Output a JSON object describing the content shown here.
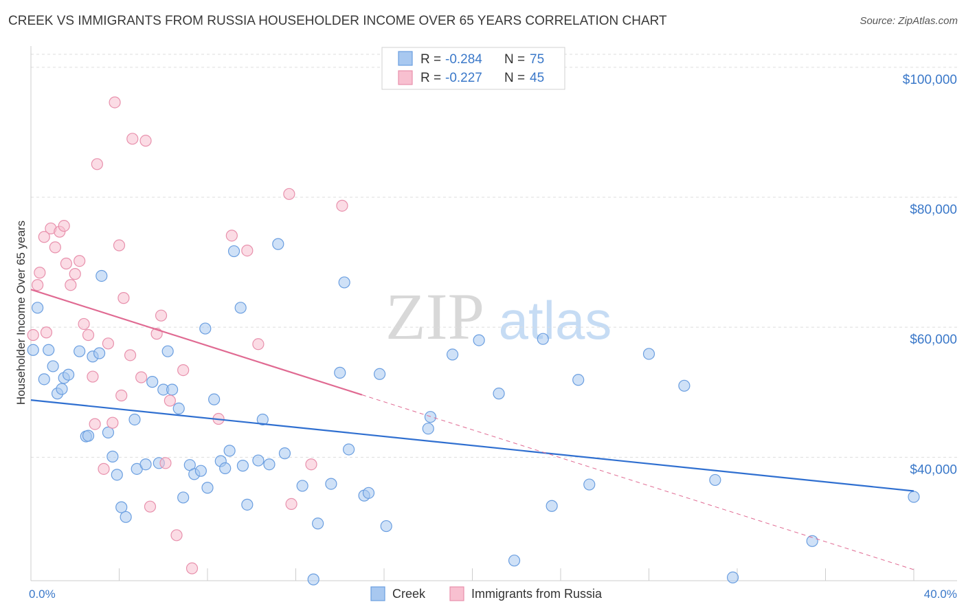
{
  "title": "CREEK VS IMMIGRANTS FROM RUSSIA HOUSEHOLDER INCOME OVER 65 YEARS CORRELATION CHART",
  "source": "Source: ZipAtlas.com",
  "watermark": {
    "zip": "ZIP",
    "atlas": "atlas"
  },
  "legend": {
    "r_label": "R =",
    "n_label": "N =",
    "rows": [
      {
        "r": "-0.284",
        "n": "75",
        "color": "#a8c8f0",
        "stroke": "#6a9ee0"
      },
      {
        "r": "-0.227",
        "n": "45",
        "color": "#f8c0d0",
        "stroke": "#e890ac"
      }
    ]
  },
  "bottom_legend": [
    "Creek",
    "Immigrants from Russia"
  ],
  "chart_data": {
    "type": "scatter",
    "title": "CREEK VS IMMIGRANTS FROM RUSSIA HOUSEHOLDER INCOME OVER 65 YEARS CORRELATION CHART",
    "xlabel": "",
    "ylabel": "Householder Income Over 65 years",
    "xlim": [
      0,
      40
    ],
    "ylim": [
      21000,
      102000
    ],
    "x_tick_labels": [
      "0.0%",
      "40.0%"
    ],
    "y_ticks": [
      40000,
      60000,
      80000,
      100000
    ],
    "y_tick_labels": [
      "$40,000",
      "$60,000",
      "$80,000",
      "$100,000"
    ],
    "series": [
      {
        "name": "Creek",
        "color": "#a8c8f0",
        "stroke": "#6a9ee0",
        "trend": {
          "x0": 0,
          "y0": 48800,
          "x1": 40,
          "y1": 34800,
          "color": "#2f6fd0"
        },
        "points": [
          [
            0.1,
            56500
          ],
          [
            0.8,
            56500
          ],
          [
            0.6,
            52000
          ],
          [
            1.0,
            54000
          ],
          [
            1.2,
            49800
          ],
          [
            1.5,
            52200
          ],
          [
            1.7,
            52700
          ],
          [
            2.2,
            56300
          ],
          [
            2.5,
            43200
          ],
          [
            2.6,
            43300
          ],
          [
            2.8,
            55500
          ],
          [
            3.1,
            56000
          ],
          [
            3.2,
            67900
          ],
          [
            3.5,
            43800
          ],
          [
            3.7,
            40100
          ],
          [
            3.9,
            37300
          ],
          [
            4.1,
            32300
          ],
          [
            4.3,
            30800
          ],
          [
            4.7,
            45800
          ],
          [
            4.8,
            38200
          ],
          [
            5.2,
            38900
          ],
          [
            5.5,
            51600
          ],
          [
            5.8,
            39100
          ],
          [
            6.0,
            50400
          ],
          [
            6.2,
            56300
          ],
          [
            6.4,
            50400
          ],
          [
            6.7,
            47500
          ],
          [
            6.9,
            33800
          ],
          [
            7.2,
            38800
          ],
          [
            7.4,
            37400
          ],
          [
            7.7,
            37900
          ],
          [
            7.9,
            59800
          ],
          [
            8.0,
            35300
          ],
          [
            8.3,
            48900
          ],
          [
            8.6,
            39400
          ],
          [
            8.8,
            38300
          ],
          [
            9.0,
            41000
          ],
          [
            9.2,
            71700
          ],
          [
            9.6,
            38700
          ],
          [
            9.8,
            32700
          ],
          [
            10.3,
            39500
          ],
          [
            10.5,
            45800
          ],
          [
            10.8,
            38900
          ],
          [
            11.2,
            72800
          ],
          [
            11.5,
            40600
          ],
          [
            12.3,
            35600
          ],
          [
            12.8,
            21200
          ],
          [
            13.0,
            29800
          ],
          [
            13.6,
            35900
          ],
          [
            14.0,
            53000
          ],
          [
            14.2,
            66900
          ],
          [
            14.4,
            41200
          ],
          [
            15.1,
            34100
          ],
          [
            15.3,
            34500
          ],
          [
            15.8,
            52800
          ],
          [
            16.1,
            29400
          ],
          [
            18.0,
            44400
          ],
          [
            18.1,
            46200
          ],
          [
            19.1,
            55800
          ],
          [
            20.3,
            58000
          ],
          [
            21.2,
            49800
          ],
          [
            21.9,
            24100
          ],
          [
            23.2,
            58200
          ],
          [
            23.6,
            32500
          ],
          [
            24.8,
            51900
          ],
          [
            25.3,
            35800
          ],
          [
            28.0,
            55900
          ],
          [
            29.6,
            51000
          ],
          [
            31.0,
            36500
          ],
          [
            31.8,
            21500
          ],
          [
            35.4,
            27100
          ],
          [
            40.0,
            33900
          ],
          [
            0.3,
            63000
          ],
          [
            9.5,
            63000
          ],
          [
            1.4,
            50500
          ]
        ]
      },
      {
        "name": "Immigrants from Russia",
        "color": "#f8c0d0",
        "stroke": "#e890ac",
        "trend": {
          "x0": 0,
          "y0": 65800,
          "x1": 15,
          "y1": 49600,
          "color": "#e06a92",
          "dash_x1": 40,
          "dash_y1": 22700
        },
        "points": [
          [
            0.1,
            58800
          ],
          [
            0.3,
            66500
          ],
          [
            0.4,
            68400
          ],
          [
            0.6,
            73900
          ],
          [
            0.7,
            59200
          ],
          [
            0.9,
            75200
          ],
          [
            1.1,
            72300
          ],
          [
            1.3,
            74700
          ],
          [
            1.5,
            75600
          ],
          [
            1.6,
            69800
          ],
          [
            1.8,
            66500
          ],
          [
            2.0,
            68200
          ],
          [
            2.2,
            70200
          ],
          [
            2.4,
            60500
          ],
          [
            2.6,
            58800
          ],
          [
            2.8,
            52400
          ],
          [
            2.9,
            45100
          ],
          [
            3.0,
            85100
          ],
          [
            3.3,
            38200
          ],
          [
            3.5,
            57500
          ],
          [
            3.7,
            45300
          ],
          [
            3.8,
            94600
          ],
          [
            4.0,
            72600
          ],
          [
            4.1,
            49500
          ],
          [
            4.2,
            64500
          ],
          [
            4.5,
            55700
          ],
          [
            4.6,
            89000
          ],
          [
            5.0,
            52300
          ],
          [
            5.2,
            88700
          ],
          [
            5.4,
            32400
          ],
          [
            5.7,
            59000
          ],
          [
            5.9,
            61800
          ],
          [
            6.1,
            39100
          ],
          [
            6.3,
            48700
          ],
          [
            6.6,
            28000
          ],
          [
            6.9,
            53400
          ],
          [
            7.3,
            22900
          ],
          [
            8.5,
            45900
          ],
          [
            9.1,
            74100
          ],
          [
            9.8,
            71800
          ],
          [
            10.3,
            57400
          ],
          [
            11.7,
            80500
          ],
          [
            11.8,
            32800
          ],
          [
            12.7,
            38900
          ],
          [
            14.1,
            78700
          ]
        ]
      }
    ]
  }
}
